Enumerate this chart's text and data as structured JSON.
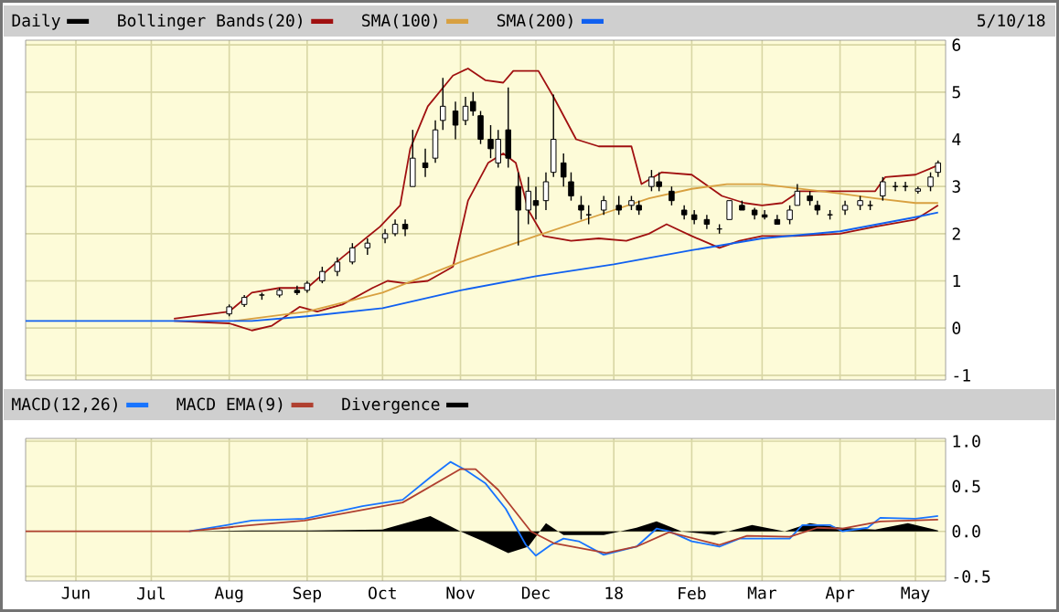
{
  "chart_data": [
    {
      "type": "candlestick",
      "xlim": [
        "2017-05-12",
        "2018-05-13"
      ],
      "ylim": [
        -1.1,
        6.1
      ],
      "yticks": [
        -1,
        0,
        1,
        2,
        3,
        4,
        5,
        6
      ],
      "grid": true,
      "legend": "top",
      "tick_labels": "y",
      "xticks": [
        {
          "value": "2017-06-01",
          "label": null
        },
        {
          "value": "2017-07-01",
          "label": null
        },
        {
          "value": "2017-08-01",
          "label": null
        },
        {
          "value": "2017-09-01",
          "label": null
        },
        {
          "value": "2017-10-01",
          "label": null
        },
        {
          "value": "2017-11-01",
          "label": null
        },
        {
          "value": "2017-12-01",
          "label": null
        },
        {
          "value": "2018-01-01",
          "label": null
        },
        {
          "value": "2018-02-01",
          "label": null
        },
        {
          "value": "2018-03-01",
          "label": null
        },
        {
          "value": "2018-04-01",
          "label": null
        },
        {
          "value": "2018-05-01",
          "label": null
        }
      ],
      "annotations": [
        "5/10/18"
      ],
      "series": [
        {
          "name": "Daily",
          "color": "#000000",
          "x": [
            "2017-08-01",
            "2017-08-07",
            "2017-08-14",
            "2017-08-21",
            "2017-08-28",
            "2017-09-01",
            "2017-09-07",
            "2017-09-13",
            "2017-09-19",
            "2017-09-25",
            "2017-10-02",
            "2017-10-06",
            "2017-10-10",
            "2017-10-13",
            "2017-10-18",
            "2017-10-22",
            "2017-10-25",
            "2017-10-30",
            "2017-11-03",
            "2017-11-06",
            "2017-11-09",
            "2017-11-13",
            "2017-11-16",
            "2017-11-20",
            "2017-11-24",
            "2017-11-28",
            "2017-12-01",
            "2017-12-05",
            "2017-12-08",
            "2017-12-12",
            "2017-12-15",
            "2017-12-19",
            "2017-12-22",
            "2017-12-28",
            "2018-01-03",
            "2018-01-08",
            "2018-01-11",
            "2018-01-16",
            "2018-01-19",
            "2018-01-24",
            "2018-01-29",
            "2018-02-02",
            "2018-02-07",
            "2018-02-12",
            "2018-02-16",
            "2018-02-21",
            "2018-02-26",
            "2018-03-02",
            "2018-03-07",
            "2018-03-12",
            "2018-03-15",
            "2018-03-20",
            "2018-03-23",
            "2018-03-28",
            "2018-04-03",
            "2018-04-09",
            "2018-04-13",
            "2018-04-18",
            "2018-04-23",
            "2018-04-27",
            "2018-05-02",
            "2018-05-07",
            "2018-05-10"
          ],
          "ohlc": [
            [
              0.3,
              0.5,
              0.25,
              0.45
            ],
            [
              0.5,
              0.7,
              0.45,
              0.65
            ],
            [
              0.7,
              0.75,
              0.6,
              0.7
            ],
            [
              0.7,
              0.85,
              0.65,
              0.8
            ],
            [
              0.8,
              0.9,
              0.7,
              0.75
            ],
            [
              0.8,
              1.0,
              0.75,
              0.95
            ],
            [
              1.0,
              1.3,
              0.95,
              1.2
            ],
            [
              1.2,
              1.5,
              1.1,
              1.4
            ],
            [
              1.4,
              1.8,
              1.35,
              1.7
            ],
            [
              1.7,
              1.9,
              1.55,
              1.8
            ],
            [
              1.9,
              2.1,
              1.8,
              2.0
            ],
            [
              2.0,
              2.3,
              1.95,
              2.2
            ],
            [
              2.2,
              2.3,
              1.95,
              2.1
            ],
            [
              3.0,
              4.2,
              3.0,
              3.6
            ],
            [
              3.5,
              3.8,
              3.2,
              3.4
            ],
            [
              3.6,
              4.4,
              3.5,
              4.2
            ],
            [
              4.4,
              5.3,
              4.2,
              4.7
            ],
            [
              4.6,
              4.8,
              4.0,
              4.3
            ],
            [
              4.4,
              4.9,
              4.3,
              4.7
            ],
            [
              4.8,
              5.0,
              4.5,
              4.6
            ],
            [
              4.5,
              4.6,
              3.9,
              4.0
            ],
            [
              4.0,
              4.3,
              3.6,
              3.8
            ],
            [
              3.5,
              4.2,
              3.4,
              4.0
            ],
            [
              4.2,
              5.1,
              3.4,
              3.6
            ],
            [
              3.0,
              3.3,
              1.75,
              2.5
            ],
            [
              2.5,
              3.2,
              2.2,
              2.9
            ],
            [
              2.7,
              3.0,
              2.3,
              2.6
            ],
            [
              2.7,
              3.3,
              2.5,
              3.1
            ],
            [
              3.3,
              4.95,
              3.2,
              4.0
            ],
            [
              3.5,
              3.7,
              3.0,
              3.2
            ],
            [
              3.1,
              3.3,
              2.7,
              2.8
            ],
            [
              2.6,
              2.8,
              2.3,
              2.5
            ],
            [
              2.4,
              2.6,
              2.2,
              2.4
            ],
            [
              2.5,
              2.8,
              2.4,
              2.7
            ],
            [
              2.6,
              2.8,
              2.4,
              2.5
            ],
            [
              2.6,
              2.8,
              2.5,
              2.7
            ],
            [
              2.6,
              2.7,
              2.4,
              2.5
            ],
            [
              3.0,
              3.35,
              2.9,
              3.2
            ],
            [
              3.1,
              3.3,
              2.9,
              3.0
            ],
            [
              2.9,
              3.0,
              2.6,
              2.7
            ],
            [
              2.5,
              2.6,
              2.3,
              2.4
            ],
            [
              2.4,
              2.5,
              2.2,
              2.3
            ],
            [
              2.3,
              2.4,
              2.1,
              2.2
            ],
            [
              2.1,
              2.2,
              2.0,
              2.1
            ],
            [
              2.3,
              2.7,
              2.3,
              2.7
            ],
            [
              2.6,
              2.7,
              2.5,
              2.5
            ],
            [
              2.5,
              2.55,
              2.3,
              2.4
            ],
            [
              2.4,
              2.5,
              2.3,
              2.35
            ],
            [
              2.3,
              2.4,
              2.2,
              2.2
            ],
            [
              2.3,
              2.6,
              2.2,
              2.5
            ],
            [
              2.6,
              3.05,
              2.6,
              2.9
            ],
            [
              2.8,
              2.9,
              2.6,
              2.7
            ],
            [
              2.6,
              2.7,
              2.4,
              2.5
            ],
            [
              2.4,
              2.5,
              2.3,
              2.4
            ],
            [
              2.5,
              2.7,
              2.4,
              2.6
            ],
            [
              2.6,
              2.8,
              2.5,
              2.7
            ],
            [
              2.6,
              2.7,
              2.5,
              2.6
            ],
            [
              2.8,
              3.2,
              2.7,
              3.1
            ],
            [
              3.0,
              3.1,
              2.9,
              3.0
            ],
            [
              3.0,
              3.1,
              2.9,
              3.0
            ],
            [
              2.9,
              3.0,
              2.85,
              2.95
            ],
            [
              3.0,
              3.3,
              2.9,
              3.2
            ],
            [
              3.3,
              3.55,
              3.2,
              3.5
            ]
          ]
        },
        {
          "type": "line",
          "name": "Bollinger Bands(20)",
          "color": "#a01010",
          "x": [
            "2017-07-10",
            "2017-08-01",
            "2017-08-10",
            "2017-08-21",
            "2017-09-01",
            "2017-09-15",
            "2017-09-30",
            "2017-10-08",
            "2017-10-12",
            "2017-10-19",
            "2017-10-29",
            "2017-11-04",
            "2017-11-11",
            "2017-11-18",
            "2017-11-22",
            "2017-12-02",
            "2017-12-08",
            "2017-12-17",
            "2017-12-26",
            "2018-01-08",
            "2018-01-12",
            "2018-01-20",
            "2018-02-01",
            "2018-02-13",
            "2018-02-22",
            "2018-03-01",
            "2018-03-09",
            "2018-03-16",
            "2018-04-01",
            "2018-04-15",
            "2018-04-19",
            "2018-05-01",
            "2018-05-10"
          ],
          "values": [
            0.2,
            0.35,
            0.75,
            0.85,
            0.85,
            1.5,
            2.15,
            2.6,
            3.8,
            4.7,
            5.35,
            5.5,
            5.25,
            5.2,
            5.45,
            5.45,
            4.9,
            4.0,
            3.85,
            3.85,
            3.05,
            3.3,
            3.25,
            2.8,
            2.65,
            2.6,
            2.65,
            2.9,
            2.9,
            2.9,
            3.2,
            3.25,
            3.45
          ]
        },
        {
          "type": "line",
          "color": "#a01010",
          "x": [
            "2017-07-10",
            "2017-08-01",
            "2017-08-10",
            "2017-08-18",
            "2017-08-29",
            "2017-09-05",
            "2017-09-15",
            "2017-09-27",
            "2017-10-03",
            "2017-10-10",
            "2017-10-19",
            "2017-10-29",
            "2017-11-04",
            "2017-11-12",
            "2017-11-18",
            "2017-11-23",
            "2017-11-28",
            "2017-12-04",
            "2017-12-15",
            "2017-12-26",
            "2018-01-06",
            "2018-01-15",
            "2018-01-22",
            "2018-02-01",
            "2018-02-12",
            "2018-02-20",
            "2018-03-01",
            "2018-03-14",
            "2018-04-01",
            "2018-04-15",
            "2018-05-01",
            "2018-05-10"
          ],
          "values": [
            0.15,
            0.1,
            -0.05,
            0.05,
            0.45,
            0.35,
            0.5,
            0.85,
            1.0,
            0.95,
            1.0,
            1.3,
            2.7,
            3.5,
            3.7,
            3.5,
            2.5,
            1.95,
            1.85,
            1.9,
            1.85,
            2.0,
            2.2,
            1.95,
            1.7,
            1.85,
            1.95,
            1.95,
            2.0,
            2.15,
            2.3,
            2.6
          ]
        },
        {
          "type": "line",
          "name": "SMA(100)",
          "color": "#d8a040",
          "x": [
            "2017-08-03",
            "2017-09-01",
            "2017-10-01",
            "2017-11-01",
            "2017-12-01",
            "2018-01-01",
            "2018-01-15",
            "2018-02-01",
            "2018-02-15",
            "2018-03-01",
            "2018-04-01",
            "2018-04-15",
            "2018-05-01",
            "2018-05-10"
          ],
          "values": [
            0.15,
            0.35,
            0.75,
            1.4,
            1.95,
            2.5,
            2.75,
            2.95,
            3.05,
            3.05,
            2.85,
            2.75,
            2.65,
            2.65
          ]
        },
        {
          "type": "line",
          "name": "SMA(200)",
          "color": "#1060f0",
          "x": [
            "2017-05-12",
            "2017-08-10",
            "2017-09-01",
            "2017-10-01",
            "2017-11-01",
            "2017-12-01",
            "2018-01-01",
            "2018-02-01",
            "2018-03-01",
            "2018-04-01",
            "2018-05-01",
            "2018-05-10"
          ],
          "values": [
            0.15,
            0.15,
            0.25,
            0.42,
            0.8,
            1.1,
            1.35,
            1.65,
            1.9,
            2.05,
            2.35,
            2.45
          ]
        }
      ]
    },
    {
      "type": "line",
      "xlim": [
        "2017-05-12",
        "2018-05-13"
      ],
      "ylim": [
        -0.55,
        1.03
      ],
      "yticks": [
        {
          "value": 1,
          "label": "1.0"
        },
        {
          "value": 0.5,
          "label": "0.5"
        },
        {
          "value": 0,
          "label": "0.0"
        },
        {
          "value": -0.5,
          "label": "-0.5"
        }
      ],
      "grid": true,
      "legend": "top",
      "xticks": [
        {
          "value": "2017-06-01",
          "label": "Jun"
        },
        {
          "value": "2017-07-01",
          "label": "Jul"
        },
        {
          "value": "2017-08-01",
          "label": "Aug"
        },
        {
          "value": "2017-09-01",
          "label": "Sep"
        },
        {
          "value": "2017-10-01",
          "label": "Oct"
        },
        {
          "value": "2017-11-01",
          "label": "Nov"
        },
        {
          "value": "2017-12-01",
          "label": "Dec"
        },
        {
          "value": "2018-01-01",
          "label": "18"
        },
        {
          "value": "2018-02-01",
          "label": "Feb"
        },
        {
          "value": "2018-03-01",
          "label": "Mar"
        },
        {
          "value": "2018-04-01",
          "label": "Apr"
        },
        {
          "value": "2018-05-01",
          "label": "May"
        }
      ],
      "series": [
        {
          "name": "MACD(12,26)",
          "color": "#1874ff",
          "x": [
            "2017-07-16",
            "2017-07-31",
            "2017-08-10",
            "2017-08-31",
            "2017-09-23",
            "2017-10-09",
            "2017-10-20",
            "2017-10-28",
            "2017-11-03",
            "2017-11-11",
            "2017-11-19",
            "2017-11-27",
            "2017-12-01",
            "2017-12-07",
            "2017-12-12",
            "2017-12-18",
            "2017-12-28",
            "2018-01-10",
            "2018-01-18",
            "2018-01-23",
            "2018-02-01",
            "2018-02-12",
            "2018-02-20",
            "2018-03-12",
            "2018-03-17",
            "2018-03-28",
            "2018-04-02",
            "2018-04-12",
            "2018-04-17",
            "2018-05-01",
            "2018-05-10"
          ],
          "values": [
            0.0,
            0.07,
            0.12,
            0.14,
            0.28,
            0.35,
            0.6,
            0.77,
            0.68,
            0.53,
            0.25,
            -0.15,
            -0.27,
            -0.15,
            -0.08,
            -0.11,
            -0.26,
            -0.17,
            0.03,
            0.0,
            -0.11,
            -0.17,
            -0.08,
            -0.08,
            0.07,
            0.07,
            0.0,
            0.04,
            0.15,
            0.14,
            0.17
          ]
        },
        {
          "name": "MACD EMA(9)",
          "color": "#b04030",
          "x": [
            "2017-05-12",
            "2017-07-16",
            "2017-08-10",
            "2017-08-31",
            "2017-10-09",
            "2017-11-01",
            "2017-11-07",
            "2017-11-16",
            "2017-11-29",
            "2017-12-08",
            "2017-12-29",
            "2018-01-10",
            "2018-01-23",
            "2018-02-12",
            "2018-02-23",
            "2018-03-12",
            "2018-03-23",
            "2018-04-02",
            "2018-04-17",
            "2018-05-10"
          ],
          "values": [
            0.0,
            0.0,
            0.07,
            0.12,
            0.32,
            0.69,
            0.69,
            0.46,
            0.0,
            -0.13,
            -0.24,
            -0.17,
            -0.01,
            -0.15,
            -0.05,
            -0.06,
            0.04,
            0.03,
            0.11,
            0.13
          ]
        },
        {
          "type": "area",
          "name": "Divergence",
          "color": "#000000",
          "x": [
            "2017-07-16",
            "2017-08-10",
            "2017-09-01",
            "2017-10-01",
            "2017-10-20",
            "2017-11-01",
            "2017-11-10",
            "2017-11-20",
            "2017-11-28",
            "2017-12-05",
            "2017-12-12",
            "2017-12-28",
            "2018-01-10",
            "2018-01-18",
            "2018-01-28",
            "2018-02-10",
            "2018-02-25",
            "2018-03-10",
            "2018-03-20",
            "2018-04-01",
            "2018-04-15",
            "2018-04-28",
            "2018-05-10"
          ],
          "values": [
            0.0,
            0.01,
            0.01,
            0.02,
            0.17,
            0.0,
            -0.11,
            -0.24,
            -0.17,
            0.09,
            -0.04,
            -0.04,
            0.04,
            0.11,
            0.0,
            -0.04,
            0.07,
            0.0,
            0.09,
            0.04,
            0.02,
            0.09,
            0.01
          ]
        }
      ]
    }
  ]
}
